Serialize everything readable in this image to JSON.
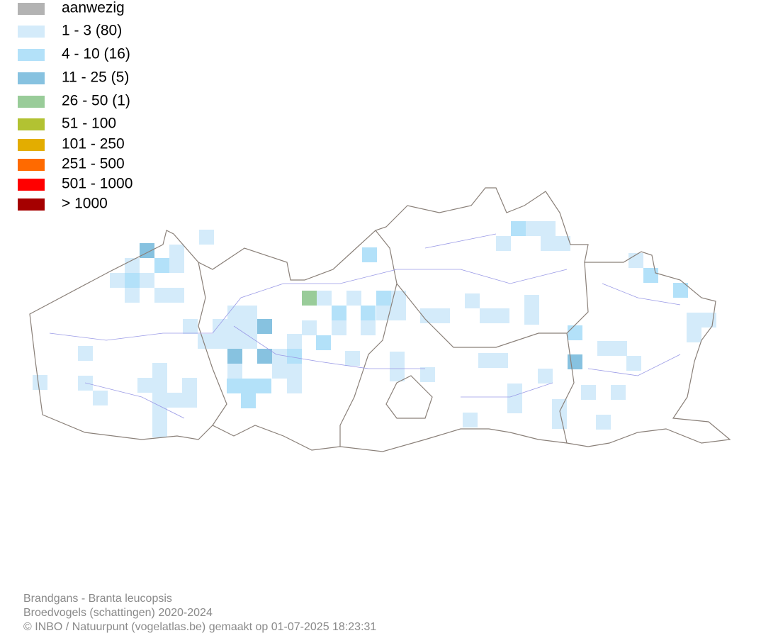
{
  "legend": [
    {
      "label": "aanwezig",
      "color": "#b3b3b3"
    },
    {
      "label": "1 - 3 (80)",
      "color": "#d4ebfa"
    },
    {
      "label": "4 - 10 (16)",
      "color": "#b3e1f9"
    },
    {
      "label": "11 - 25 (5)",
      "color": "#87c2e0"
    },
    {
      "label": "26 - 50 (1)",
      "color": "#99cc99"
    },
    {
      "label": "51 - 100",
      "color": "#b2c232"
    },
    {
      "label": "101 - 250",
      "color": "#e3ad00"
    },
    {
      "label": "251 - 500",
      "color": "#ff6a00"
    },
    {
      "label": "501 - 1000",
      "color": "#ff0000"
    },
    {
      "label": "> 1000",
      "color": "#a50000"
    }
  ],
  "footer": [
    "Brandgans - Branta leucopsis",
    "Broedvogels (schattingen) 2020-2024",
    "© INBO / Natuurpunt (vogelatlas.be) gemaakt op 01-07-2025 18:23:31"
  ]
}
